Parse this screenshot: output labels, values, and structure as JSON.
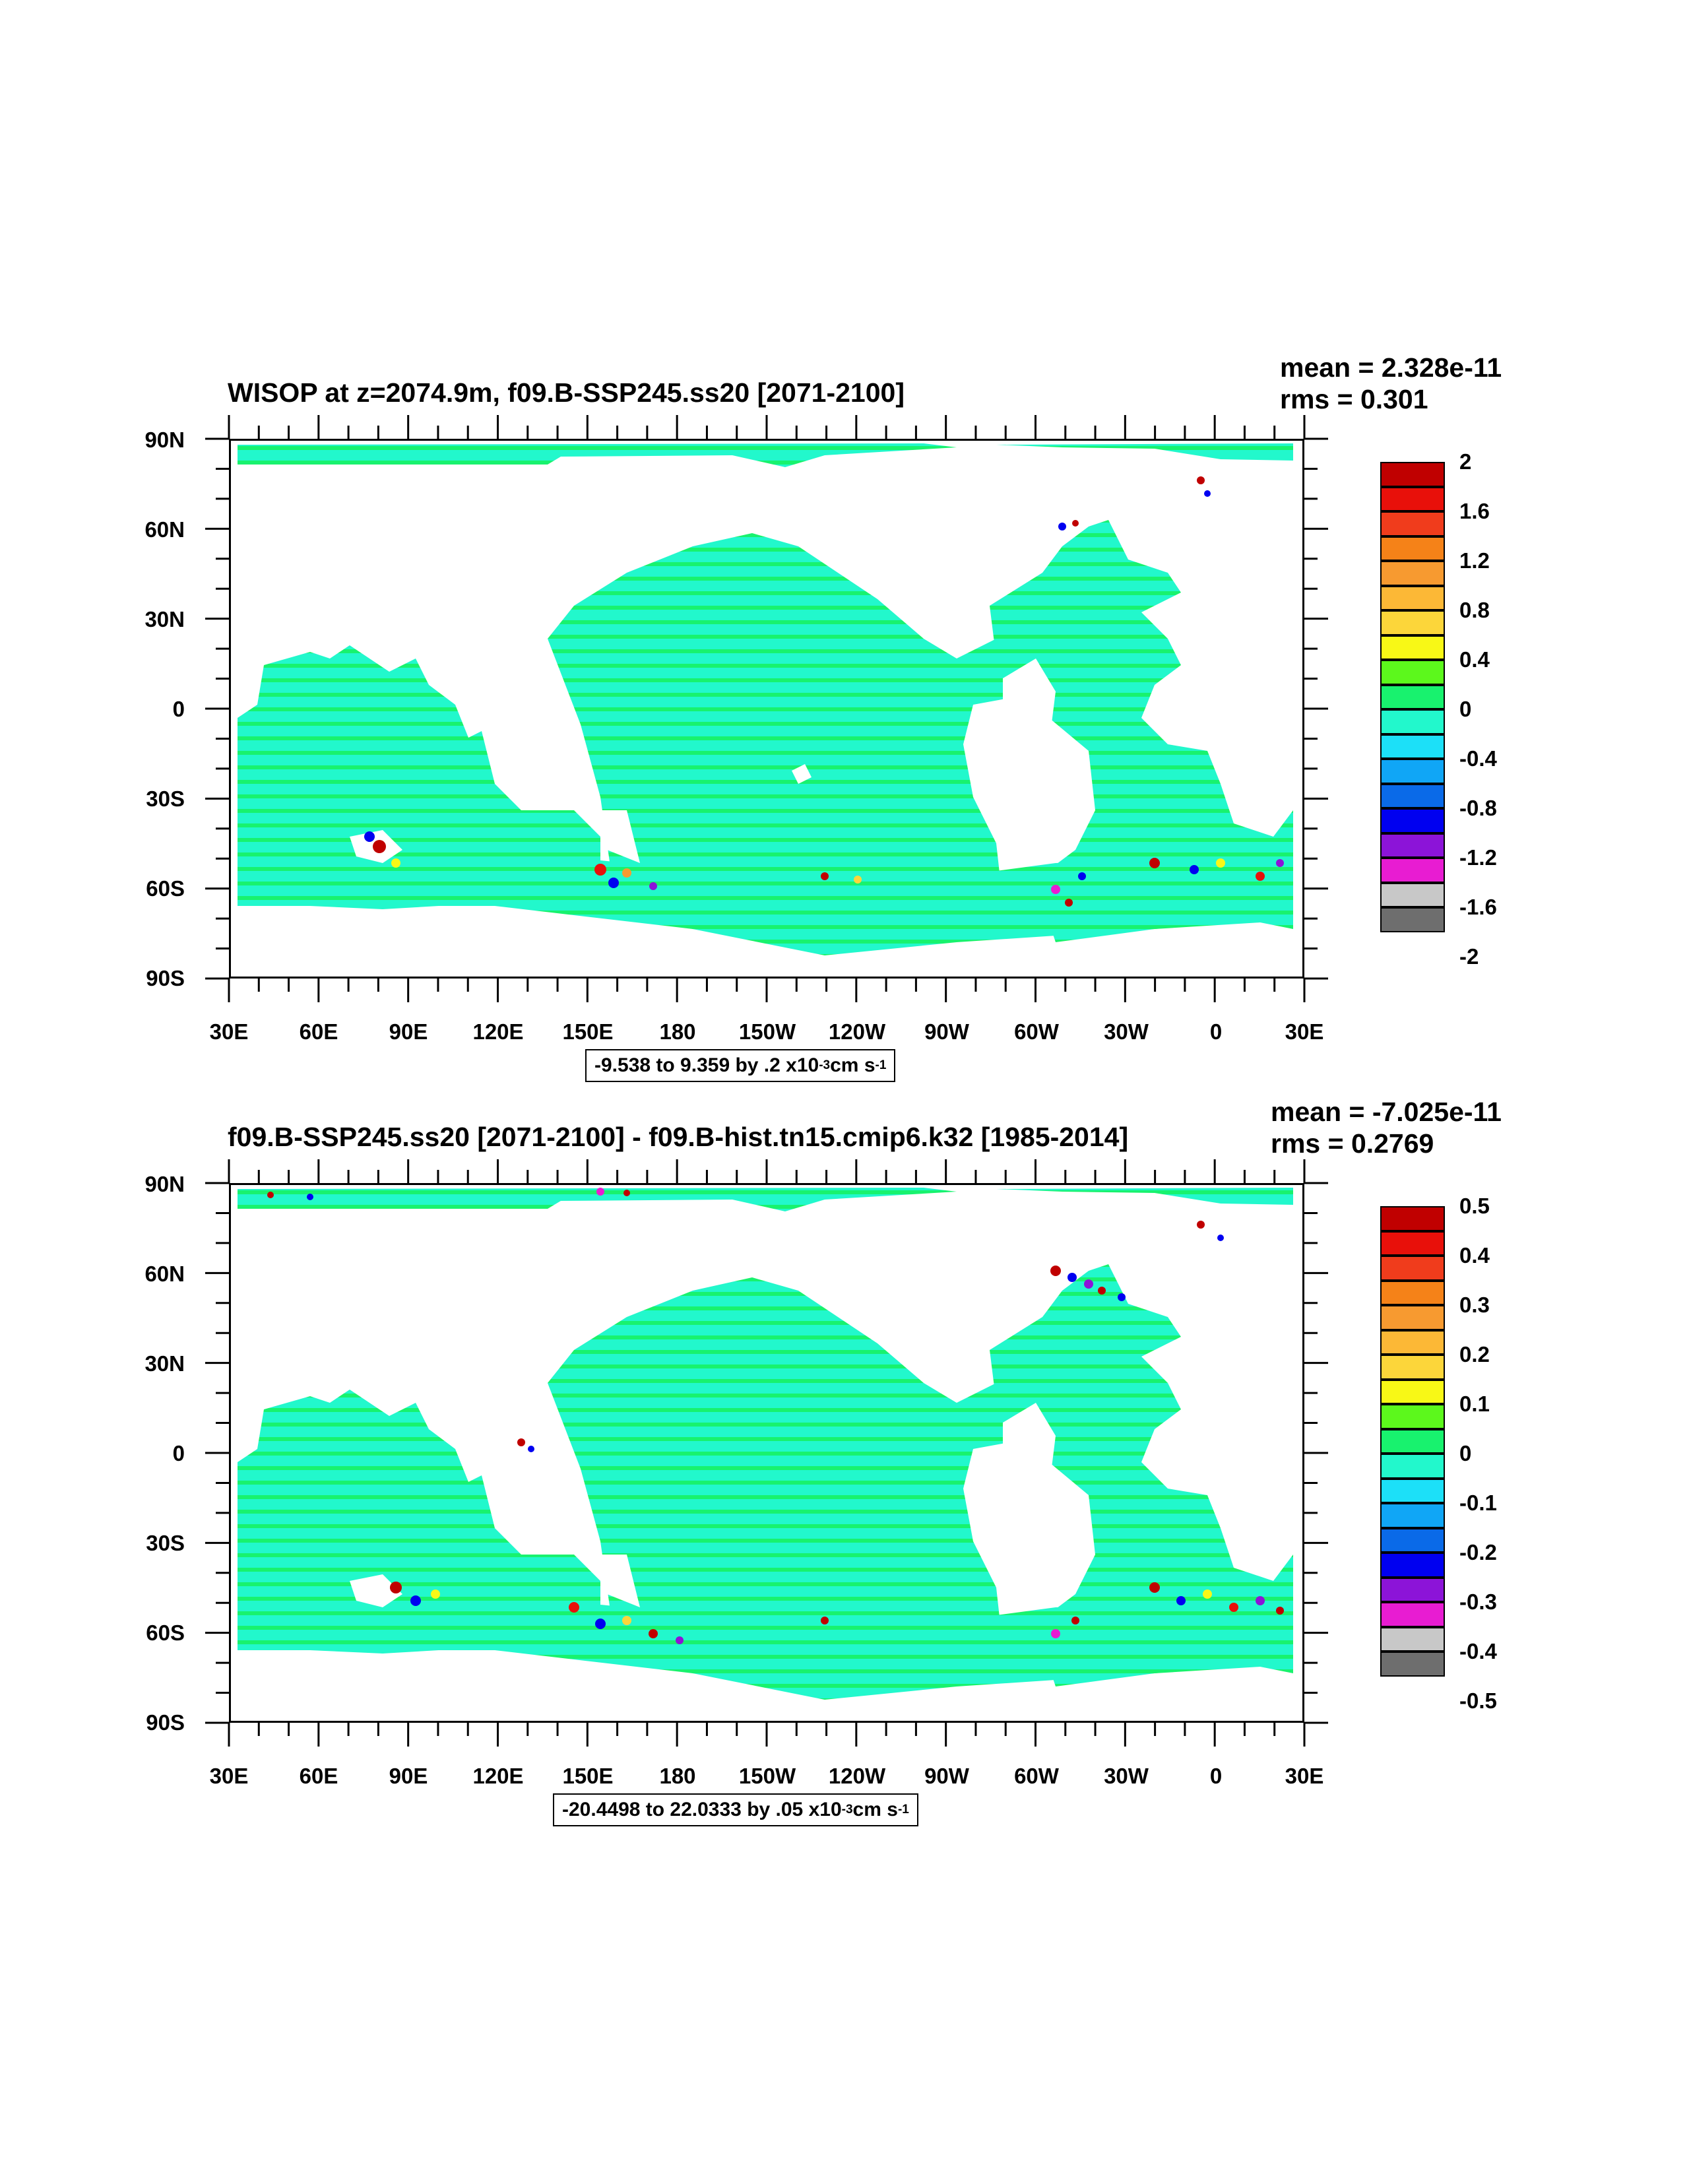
{
  "chart_data": [
    {
      "type": "heatmap",
      "title": "WISOP at z=2074.9m, f09.B-SSP245.ss20 [2071-2100]",
      "stats": {
        "mean": "mean = 2.328e-11",
        "rms": "rms = 0.301"
      },
      "x_ticks": [
        "30E",
        "60E",
        "90E",
        "120E",
        "150E",
        "180",
        "150W",
        "120W",
        "90W",
        "60W",
        "30W",
        "0",
        "30E"
      ],
      "y_ticks": [
        "90N",
        "60N",
        "30N",
        "0",
        "30S",
        "60S",
        "90S"
      ],
      "xlim": [
        30,
        390
      ],
      "ylim": [
        -90,
        90
      ],
      "info_main": "-9.538 to 9.359 by .2 x10",
      "info_exp": "-3",
      "info_unit": " cm s",
      "info_unit_exp": "-1",
      "colorbar_labels": [
        "2",
        "1.6",
        "1.2",
        "0.8",
        "0.4",
        "0",
        "-0.4",
        "-0.8",
        "-1.2",
        "-1.6",
        "-2"
      ],
      "colors": [
        "#c00000",
        "#e8100a",
        "#f03c1c",
        "#f58218",
        "#f79a30",
        "#fcb836",
        "#fcd63a",
        "#f8f816",
        "#5cf81c",
        "#18f26e",
        "#22f8cc",
        "#1ce0f8",
        "#10a6f6",
        "#0a6ae8",
        "#0000f0",
        "#8c14d8",
        "#e81cd2",
        "#c8c8c8",
        "#6e6e6e"
      ]
    },
    {
      "type": "heatmap",
      "title": "f09.B-SSP245.ss20 [2071-2100] - f09.B-hist.tn15.cmip6.k32 [1985-2014]",
      "stats": {
        "mean": "mean = -7.025e-11",
        "rms": "rms = 0.2769"
      },
      "x_ticks": [
        "30E",
        "60E",
        "90E",
        "120E",
        "150E",
        "180",
        "150W",
        "120W",
        "90W",
        "60W",
        "30W",
        "0",
        "30E"
      ],
      "y_ticks": [
        "90N",
        "60N",
        "30N",
        "0",
        "30S",
        "60S",
        "90S"
      ],
      "xlim": [
        30,
        390
      ],
      "ylim": [
        -90,
        90
      ],
      "info_main": "-20.4498 to 22.0333 by .05 x10",
      "info_exp": "-3",
      "info_unit": " cm s",
      "info_unit_exp": "-1",
      "colorbar_labels": [
        "0.5",
        "0.4",
        "0.3",
        "0.2",
        "0.1",
        "0",
        "-0.1",
        "-0.2",
        "-0.3",
        "-0.4",
        "-0.5"
      ],
      "colors": [
        "#c00000",
        "#e8100a",
        "#f03c1c",
        "#f58218",
        "#f79a30",
        "#fcb836",
        "#fcd63a",
        "#f8f816",
        "#5cf81c",
        "#18f26e",
        "#22f8cc",
        "#1ce0f8",
        "#10a6f6",
        "#0a6ae8",
        "#0000f0",
        "#8c14d8",
        "#e81cd2",
        "#c8c8c8",
        "#6e6e6e"
      ]
    }
  ]
}
